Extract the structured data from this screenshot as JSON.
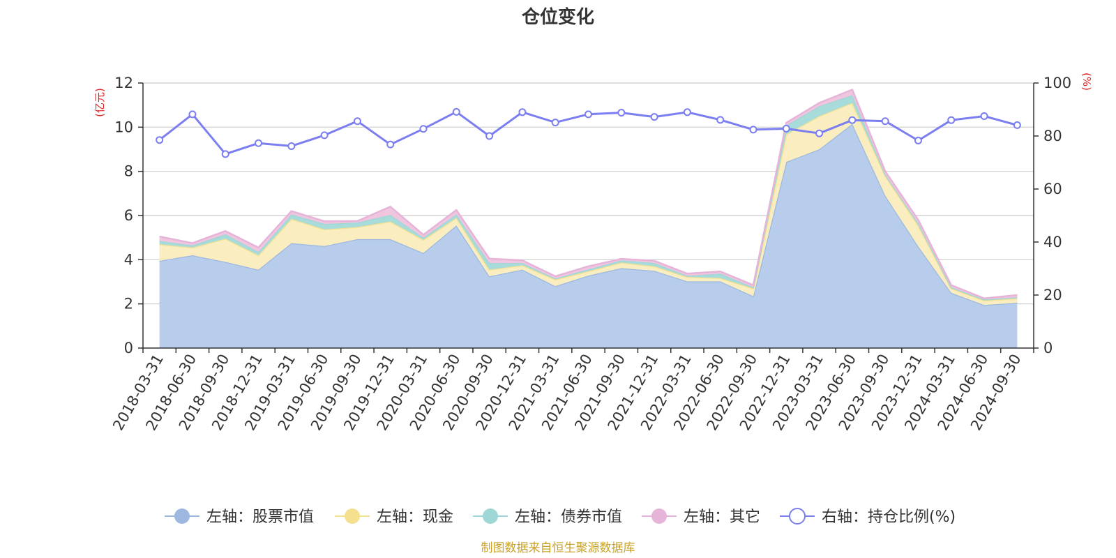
{
  "chart_data": {
    "type": "area",
    "title": "仓位变化",
    "left_axis_unit": "(亿元)",
    "right_axis_unit": "(%)",
    "left_ylim": [
      0,
      12
    ],
    "left_yticks": [
      0,
      2,
      4,
      6,
      8,
      10,
      12
    ],
    "right_ylim": [
      0,
      100
    ],
    "right_yticks": [
      0,
      20,
      40,
      60,
      80,
      100
    ],
    "grid": true,
    "legend_position": "bottom",
    "categories": [
      "2018-03-31",
      "2018-06-30",
      "2018-09-30",
      "2018-12-31",
      "2019-03-31",
      "2019-06-30",
      "2019-09-30",
      "2019-12-31",
      "2020-03-31",
      "2020-06-30",
      "2020-09-30",
      "2020-12-31",
      "2021-03-31",
      "2021-06-30",
      "2021-09-30",
      "2021-12-31",
      "2022-03-31",
      "2022-06-30",
      "2022-09-30",
      "2022-12-31",
      "2023-03-31",
      "2023-06-30",
      "2023-09-30",
      "2023-12-31",
      "2024-03-31",
      "2024-06-30",
      "2024-09-30"
    ],
    "series": [
      {
        "name": "左轴：股票市值",
        "axis": "left",
        "kind": "stacked-area",
        "color": "#9cb8e0",
        "fill": "#b8cdeb",
        "values": [
          3.95,
          4.2,
          3.9,
          3.55,
          4.75,
          4.62,
          4.93,
          4.93,
          4.3,
          5.55,
          3.25,
          3.55,
          2.8,
          3.28,
          3.62,
          3.5,
          3.02,
          3.02,
          2.35,
          8.43,
          9.0,
          10.15,
          6.9,
          4.6,
          2.5,
          1.95,
          2.05
        ]
      },
      {
        "name": "左轴：现金",
        "axis": "left",
        "kind": "stacked-area",
        "color": "#f5e08f",
        "fill": "#faedc0",
        "values": [
          0.75,
          0.35,
          1.05,
          0.65,
          1.1,
          0.75,
          0.55,
          0.8,
          0.6,
          0.35,
          0.3,
          0.2,
          0.3,
          0.2,
          0.25,
          0.2,
          0.2,
          0.15,
          0.35,
          1.25,
          1.5,
          0.95,
          0.9,
          0.95,
          0.2,
          0.2,
          0.2
        ]
      },
      {
        "name": "左轴：债券市值",
        "axis": "left",
        "kind": "stacked-area",
        "color": "#9fd6d6",
        "fill": "#a8dcda",
        "values": [
          0.15,
          0.1,
          0.2,
          0.15,
          0.2,
          0.25,
          0.2,
          0.3,
          0.1,
          0.15,
          0.3,
          0.1,
          0.05,
          0.08,
          0.1,
          0.15,
          0.05,
          0.2,
          0.05,
          0.4,
          0.45,
          0.35,
          0.05,
          0.1,
          0.05,
          0.05,
          0.05
        ]
      },
      {
        "name": "左轴：其它",
        "axis": "left",
        "kind": "stacked-area",
        "color": "#e6b4d8",
        "fill": "#f0c6df",
        "values": [
          0.2,
          0.1,
          0.15,
          0.2,
          0.15,
          0.12,
          0.07,
          0.37,
          0.13,
          0.2,
          0.2,
          0.12,
          0.1,
          0.14,
          0.07,
          0.1,
          0.1,
          0.1,
          0.1,
          0.12,
          0.15,
          0.25,
          0.15,
          0.15,
          0.1,
          0.05,
          0.1
        ]
      },
      {
        "name": "右轴：持仓比例(%)",
        "axis": "right",
        "kind": "line",
        "color": "#7b7ef0",
        "values": [
          78.5,
          88.2,
          73.2,
          77.3,
          76.2,
          80.3,
          85.6,
          76.8,
          82.7,
          89.1,
          80.0,
          89.0,
          85.1,
          88.2,
          88.8,
          87.2,
          89.0,
          86.1,
          82.4,
          82.8,
          81.0,
          86.0,
          85.6,
          78.3,
          86.0,
          87.5,
          84.1
        ]
      }
    ],
    "source_note": "制图数据来自恒生聚源数据库"
  }
}
